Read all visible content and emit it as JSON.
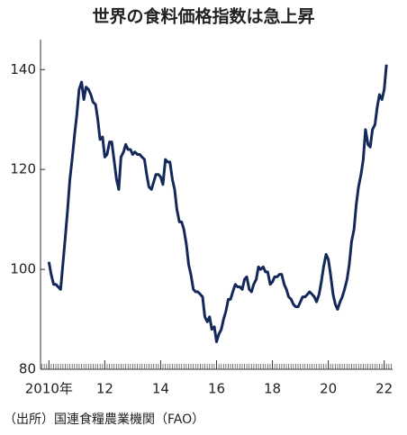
{
  "chart_data": {
    "type": "line",
    "title": "世界の食料価格指数は急上昇",
    "source": "（出所）国連食糧農業機関（FAO）",
    "x": [
      2010,
      2010.08,
      2010.17,
      2010.25,
      2010.33,
      2010.42,
      2010.5,
      2010.58,
      2010.67,
      2010.75,
      2010.83,
      2010.92,
      2011,
      2011.08,
      2011.17,
      2011.25,
      2011.33,
      2011.42,
      2011.5,
      2011.58,
      2011.67,
      2011.75,
      2011.83,
      2011.92,
      2012,
      2012.08,
      2012.17,
      2012.25,
      2012.33,
      2012.42,
      2012.5,
      2012.58,
      2012.67,
      2012.75,
      2012.83,
      2012.92,
      2013,
      2013.08,
      2013.17,
      2013.25,
      2013.33,
      2013.42,
      2013.5,
      2013.58,
      2013.67,
      2013.75,
      2013.83,
      2013.92,
      2014,
      2014.08,
      2014.17,
      2014.25,
      2014.33,
      2014.42,
      2014.5,
      2014.58,
      2014.67,
      2014.75,
      2014.83,
      2014.92,
      2015,
      2015.08,
      2015.17,
      2015.25,
      2015.33,
      2015.42,
      2015.5,
      2015.58,
      2015.67,
      2015.75,
      2015.83,
      2015.92,
      2016,
      2016.08,
      2016.17,
      2016.25,
      2016.33,
      2016.42,
      2016.5,
      2016.58,
      2016.67,
      2016.75,
      2016.83,
      2016.92,
      2017,
      2017.08,
      2017.17,
      2017.25,
      2017.33,
      2017.42,
      2017.5,
      2017.58,
      2017.67,
      2017.75,
      2017.83,
      2017.92,
      2018,
      2018.08,
      2018.17,
      2018.25,
      2018.33,
      2018.42,
      2018.5,
      2018.58,
      2018.67,
      2018.75,
      2018.83,
      2018.92,
      2019,
      2019.08,
      2019.17,
      2019.25,
      2019.33,
      2019.42,
      2019.5,
      2019.58,
      2019.67,
      2019.75,
      2019.83,
      2019.92,
      2020,
      2020.08,
      2020.17,
      2020.25,
      2020.33,
      2020.42,
      2020.5,
      2020.58,
      2020.67,
      2020.75,
      2020.83,
      2020.92,
      2021,
      2021.08,
      2021.17,
      2021.25,
      2021.33,
      2021.42,
      2021.5,
      2021.58,
      2021.67,
      2021.75,
      2021.83,
      2021.92,
      2022,
      2022.08
    ],
    "series": [
      {
        "color": "#14295a",
        "values": [
          101.5,
          99,
          97,
          97,
          96.5,
          96,
          101,
          106,
          112,
          118,
          122,
          127,
          131,
          136,
          137.5,
          134,
          136.5,
          136,
          135,
          133.5,
          133,
          130,
          126,
          126.5,
          122.5,
          123,
          125.5,
          125.5,
          122,
          118,
          116,
          122.5,
          123.5,
          125,
          124,
          124,
          123,
          123.5,
          123,
          123,
          122.5,
          122,
          119,
          116.5,
          116,
          117.5,
          119,
          119,
          118.5,
          117,
          122,
          121.5,
          121.5,
          118,
          116,
          112,
          109.5,
          109.5,
          108,
          105,
          101,
          99,
          96,
          95.5,
          95.5,
          95,
          94.5,
          90.5,
          89.5,
          90.5,
          88,
          88.5,
          85.5,
          87,
          88,
          90,
          91.5,
          94,
          94,
          95.5,
          97,
          96.5,
          96.5,
          96,
          98,
          98.5,
          96,
          95.5,
          97,
          98,
          100.5,
          100,
          100.5,
          99.5,
          99.5,
          97,
          97.5,
          98.5,
          98.5,
          99,
          99,
          97,
          96,
          94.5,
          94,
          93,
          92.5,
          92.5,
          93.5,
          94.5,
          94.5,
          95,
          95.5,
          95,
          94.5,
          93.5,
          95,
          97.5,
          100.5,
          103,
          102,
          99,
          95,
          93,
          92,
          93.5,
          94.5,
          96,
          98,
          101,
          105.5,
          108,
          113,
          116.5,
          119,
          122,
          128,
          125,
          124.5,
          128,
          129,
          132.5,
          135,
          134,
          136,
          141
        ]
      }
    ],
    "xlim": [
      2009.7,
      2022.3
    ],
    "xticks": [
      {
        "value": 2010,
        "label": "2010年"
      },
      {
        "value": 2012,
        "label": "12"
      },
      {
        "value": 2014,
        "label": "14"
      },
      {
        "value": 2016,
        "label": "16"
      },
      {
        "value": 2018,
        "label": "18"
      },
      {
        "value": 2020,
        "label": "20"
      },
      {
        "value": 2022,
        "label": "22"
      }
    ],
    "ylim": [
      80,
      146
    ],
    "yticks": [
      80,
      100,
      120,
      140
    ]
  }
}
